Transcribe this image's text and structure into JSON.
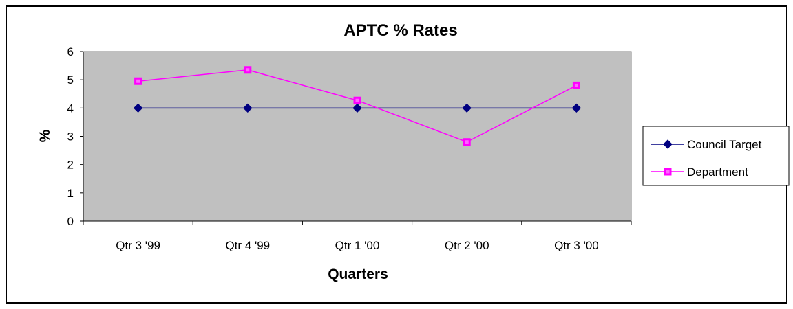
{
  "chart_data": {
    "type": "line",
    "title": "APTC % Rates",
    "xlabel": "Quarters",
    "ylabel": "%",
    "categories": [
      "Qtr 3 '99",
      "Qtr 4 '99",
      "Qtr 1 '00",
      "Qtr 2 '00",
      "Qtr 3 '00"
    ],
    "ylim": [
      0,
      6
    ],
    "yticks": [
      0,
      1,
      2,
      3,
      4,
      5,
      6
    ],
    "grid": false,
    "plot_background": "#c0c0c0",
    "legend_position": "right",
    "series": [
      {
        "name": "Council Target",
        "values": [
          4,
          4,
          4,
          4,
          4
        ],
        "color": "#000080",
        "marker": "diamond"
      },
      {
        "name": "Department",
        "values": [
          4.95,
          5.35,
          4.27,
          2.8,
          4.8
        ],
        "color": "#ff00ff",
        "marker": "square"
      }
    ]
  }
}
